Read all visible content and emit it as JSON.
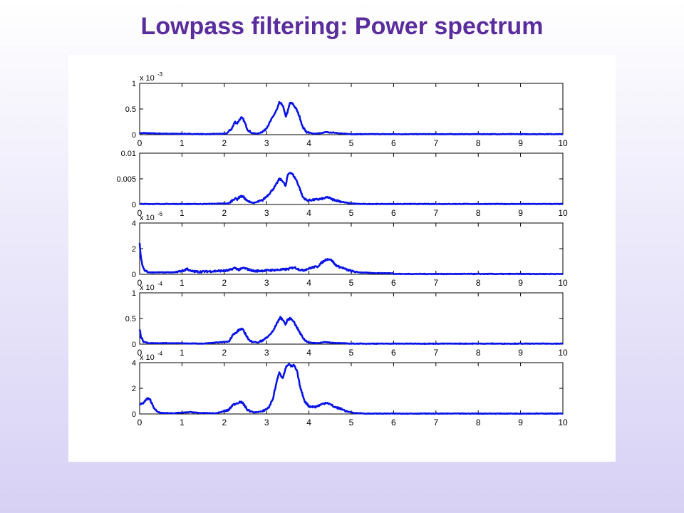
{
  "slide": {
    "title": "Lowpass filtering: Power spectrum",
    "background_top": "#ffffff",
    "background_bottom": "#d7d1f5",
    "title_color": "#5a2d9c"
  },
  "chart_data": [
    {
      "type": "line",
      "color": "#0a14e6",
      "xlim": [
        0,
        10
      ],
      "xticks": [
        "0",
        "1",
        "2",
        "3",
        "4",
        "5",
        "6",
        "7",
        "8",
        "9",
        "10"
      ],
      "ylim": [
        0,
        1
      ],
      "yticks": [
        {
          "v": 0,
          "label": "0"
        },
        {
          "v": 0.5,
          "label": "0.5"
        },
        {
          "v": 1,
          "label": "1"
        }
      ],
      "multiplier": "x 10",
      "exponent": "-3",
      "floor": 0.01,
      "x": [
        0.15,
        0.5,
        1.6,
        2.05,
        2.18,
        2.25,
        2.3,
        2.35,
        2.4,
        2.45,
        2.55,
        2.65,
        2.8,
        2.95,
        3.05,
        3.15,
        3.25,
        3.3,
        3.38,
        3.45,
        3.5,
        3.55,
        3.62,
        3.7,
        3.78,
        3.85,
        3.95,
        4.1,
        4.3,
        4.4,
        4.5,
        4.6,
        4.8,
        5.0,
        5.2
      ],
      "y": [
        0.03,
        0.02,
        0.01,
        0.02,
        0.12,
        0.25,
        0.22,
        0.28,
        0.33,
        0.3,
        0.1,
        0.03,
        0.02,
        0.08,
        0.2,
        0.35,
        0.5,
        0.62,
        0.58,
        0.35,
        0.45,
        0.62,
        0.6,
        0.5,
        0.35,
        0.15,
        0.05,
        0.02,
        0.03,
        0.05,
        0.04,
        0.04,
        0.02,
        0.01,
        0.01
      ]
    },
    {
      "type": "line",
      "color": "#0a14e6",
      "xlim": [
        0,
        10
      ],
      "xticks": [
        "0",
        "1",
        "2",
        "3",
        "4",
        "5",
        "6",
        "7",
        "8",
        "9",
        "10"
      ],
      "ylim": [
        0,
        0.01
      ],
      "yticks": [
        {
          "v": 0,
          "label": "0"
        },
        {
          "v": 0.005,
          "label": "0.005"
        },
        {
          "v": 0.01,
          "label": "0.01"
        }
      ],
      "multiplier": "",
      "exponent": "",
      "floor": 0.0001,
      "x": [
        0.2,
        1.5,
        2.1,
        2.25,
        2.3,
        2.38,
        2.45,
        2.55,
        2.7,
        2.9,
        3.05,
        3.2,
        3.3,
        3.38,
        3.45,
        3.5,
        3.55,
        3.62,
        3.7,
        3.78,
        3.85,
        3.95,
        4.1,
        4.3,
        4.45,
        4.55,
        4.7,
        4.85,
        5.0,
        5.2
      ],
      "y": [
        0.0001,
        0.0001,
        0.0002,
        0.0012,
        0.001,
        0.0016,
        0.0015,
        0.0006,
        0.0003,
        0.0008,
        0.002,
        0.0035,
        0.005,
        0.0046,
        0.0035,
        0.0058,
        0.0063,
        0.0058,
        0.0048,
        0.0032,
        0.0015,
        0.0008,
        0.0009,
        0.0011,
        0.0014,
        0.001,
        0.0007,
        0.0004,
        0.0002,
        0.0001
      ]
    },
    {
      "type": "line",
      "color": "#0a14e6",
      "xlim": [
        0,
        10
      ],
      "xticks": [
        "0",
        "1",
        "2",
        "3",
        "4",
        "5",
        "6",
        "7",
        "8",
        "9",
        "10"
      ],
      "ylim": [
        0,
        4
      ],
      "yticks": [
        {
          "v": 0,
          "label": "0"
        },
        {
          "v": 2,
          "label": "2"
        },
        {
          "v": 4,
          "label": "4"
        }
      ],
      "multiplier": "x 10",
      "exponent": "-6",
      "floor": 0.03,
      "x": [
        0.0,
        0.03,
        0.07,
        0.12,
        0.2,
        0.4,
        0.8,
        1.05,
        1.12,
        1.2,
        1.4,
        1.8,
        2.1,
        2.25,
        2.35,
        2.45,
        2.55,
        2.7,
        3.0,
        3.3,
        3.5,
        3.65,
        3.75,
        3.85,
        4.0,
        4.1,
        4.2,
        4.3,
        4.4,
        4.48,
        4.55,
        4.62,
        4.7,
        4.8,
        4.9,
        5.0,
        5.2,
        5.5,
        6.0
      ],
      "y": [
        2.4,
        1.3,
        0.6,
        0.3,
        0.15,
        0.15,
        0.15,
        0.3,
        0.45,
        0.25,
        0.2,
        0.25,
        0.3,
        0.5,
        0.35,
        0.5,
        0.4,
        0.25,
        0.3,
        0.35,
        0.4,
        0.55,
        0.4,
        0.3,
        0.45,
        0.55,
        0.6,
        0.9,
        1.15,
        1.2,
        1.05,
        0.75,
        0.6,
        0.5,
        0.35,
        0.25,
        0.15,
        0.1,
        0.08
      ]
    },
    {
      "type": "line",
      "color": "#0a14e6",
      "xlim": [
        0,
        10
      ],
      "xticks": [
        "0",
        "1",
        "2",
        "3",
        "4",
        "5",
        "6",
        "7",
        "8",
        "9",
        "10"
      ],
      "ylim": [
        0,
        1
      ],
      "yticks": [
        {
          "v": 0,
          "label": "0"
        },
        {
          "v": 0.5,
          "label": "0.5"
        },
        {
          "v": 1,
          "label": "1"
        }
      ],
      "multiplier": "x 10",
      "exponent": "-4",
      "floor": 0.01,
      "x": [
        0.0,
        0.04,
        0.1,
        0.2,
        0.6,
        1.5,
        2.1,
        2.2,
        2.28,
        2.35,
        2.42,
        2.5,
        2.6,
        2.8,
        3.0,
        3.15,
        3.25,
        3.32,
        3.38,
        3.45,
        3.5,
        3.56,
        3.62,
        3.7,
        3.8,
        3.9,
        4.0,
        4.2,
        4.4,
        4.5,
        4.7,
        5.0,
        5.3
      ],
      "y": [
        0.28,
        0.12,
        0.05,
        0.02,
        0.02,
        0.01,
        0.05,
        0.18,
        0.22,
        0.28,
        0.3,
        0.2,
        0.06,
        0.03,
        0.12,
        0.25,
        0.42,
        0.52,
        0.48,
        0.38,
        0.48,
        0.5,
        0.47,
        0.35,
        0.2,
        0.08,
        0.03,
        0.02,
        0.04,
        0.03,
        0.02,
        0.01,
        0.01
      ]
    },
    {
      "type": "line",
      "color": "#0a14e6",
      "xlim": [
        0,
        10
      ],
      "xticks": [
        "0",
        "1",
        "2",
        "3",
        "4",
        "5",
        "6",
        "7",
        "8",
        "9",
        "10"
      ],
      "ylim": [
        0,
        4
      ],
      "yticks": [
        {
          "v": 0,
          "label": "0"
        },
        {
          "v": 2,
          "label": "2"
        },
        {
          "v": 4,
          "label": "4"
        }
      ],
      "multiplier": "x 10",
      "exponent": "-4",
      "floor": 0.03,
      "x": [
        0.0,
        0.1,
        0.18,
        0.25,
        0.32,
        0.4,
        0.5,
        0.8,
        1.1,
        1.2,
        1.4,
        1.8,
        2.1,
        2.2,
        2.3,
        2.38,
        2.45,
        2.55,
        2.7,
        2.9,
        3.05,
        3.15,
        3.25,
        3.3,
        3.38,
        3.45,
        3.52,
        3.58,
        3.65,
        3.72,
        3.8,
        3.9,
        4.0,
        4.15,
        4.3,
        4.42,
        4.5,
        4.6,
        4.75,
        4.9,
        5.05,
        5.3
      ],
      "y": [
        0.7,
        0.9,
        1.2,
        1.1,
        0.6,
        0.2,
        0.08,
        0.06,
        0.12,
        0.15,
        0.08,
        0.05,
        0.3,
        0.7,
        0.85,
        0.95,
        0.8,
        0.3,
        0.12,
        0.2,
        0.5,
        1.2,
        2.7,
        3.2,
        2.8,
        3.6,
        3.9,
        3.7,
        3.8,
        3.3,
        2.0,
        1.0,
        0.6,
        0.55,
        0.75,
        0.9,
        0.75,
        0.55,
        0.4,
        0.2,
        0.08,
        0.04
      ]
    }
  ]
}
